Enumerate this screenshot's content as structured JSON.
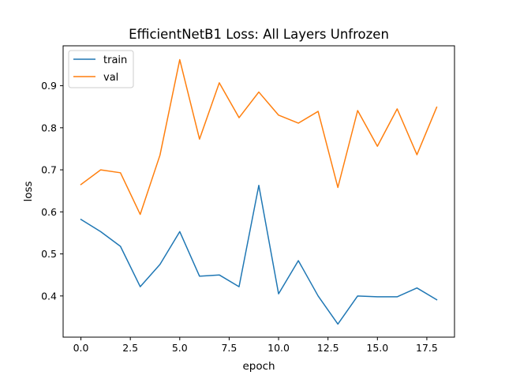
{
  "chart_data": {
    "type": "line",
    "title": "EfficientNetB1 Loss: All Layers Unfrozen",
    "xlabel": "epoch",
    "ylabel": "loss",
    "x": [
      0,
      1,
      2,
      3,
      4,
      5,
      6,
      7,
      8,
      9,
      10,
      11,
      12,
      13,
      14,
      15,
      16,
      17,
      18
    ],
    "xlim": [
      -0.9,
      18.9
    ],
    "ylim": [
      0.302,
      0.995
    ],
    "xticks": [
      0.0,
      2.5,
      5.0,
      7.5,
      10.0,
      12.5,
      15.0,
      17.5
    ],
    "xtick_labels": [
      "0.0",
      "2.5",
      "5.0",
      "7.5",
      "10.0",
      "12.5",
      "15.0",
      "17.5"
    ],
    "yticks": [
      0.4,
      0.5,
      0.6,
      0.7,
      0.8,
      0.9
    ],
    "ytick_labels": [
      "0.4",
      "0.5",
      "0.6",
      "0.7",
      "0.8",
      "0.9"
    ],
    "grid": false,
    "legend_position": "upper-left",
    "series": [
      {
        "name": "train",
        "color": "#1f77b4",
        "values": [
          0.582,
          0.553,
          0.518,
          0.422,
          0.475,
          0.553,
          0.447,
          0.45,
          0.422,
          0.663,
          0.405,
          0.484,
          0.4,
          0.333,
          0.4,
          0.398,
          0.398,
          0.419,
          0.391
        ]
      },
      {
        "name": "val",
        "color": "#ff7f0e",
        "values": [
          0.665,
          0.7,
          0.693,
          0.594,
          0.735,
          0.962,
          0.773,
          0.907,
          0.824,
          0.885,
          0.83,
          0.811,
          0.839,
          0.658,
          0.841,
          0.756,
          0.845,
          0.736,
          0.849
        ]
      }
    ]
  }
}
